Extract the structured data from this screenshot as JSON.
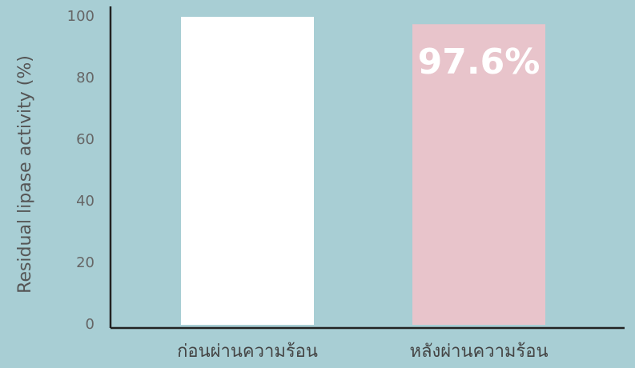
{
  "chart_data": {
    "type": "bar",
    "y_label": "Residual lipase activity (%)",
    "categories": [
      "ก่อนผ่านความร้อน",
      "หลังผ่านความร้อน"
    ],
    "values": [
      100,
      97.6
    ],
    "value_labels": [
      null,
      "97.6%"
    ],
    "colors": [
      "#ffffff",
      "#e8c4cb"
    ],
    "ylim": [
      0,
      100
    ],
    "yticks": [
      0,
      20,
      40,
      60,
      80,
      100
    ],
    "grid": false
  }
}
